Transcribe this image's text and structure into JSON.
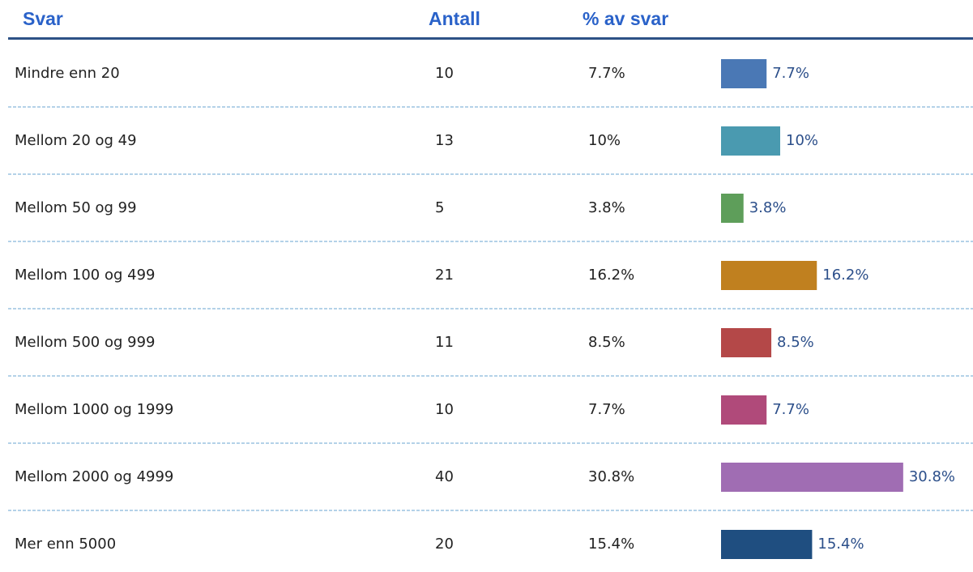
{
  "table": {
    "headers": [
      "Svar",
      "Antall",
      "% av svar"
    ],
    "rows": [
      {
        "svar": "Mindre enn 20",
        "antall": 10,
        "percent": 7.7,
        "percent_label": "7.7%",
        "color": "#4a78b5"
      },
      {
        "svar": "Mellom 20 og 49",
        "antall": 13,
        "percent": 10,
        "percent_label": "10%",
        "color": "#4a9ab0"
      },
      {
        "svar": "Mellom 50 og 99",
        "antall": 5,
        "percent": 3.8,
        "percent_label": "3.8%",
        "color": "#5e9e5a"
      },
      {
        "svar": "Mellom 100 og 499",
        "antall": 21,
        "percent": 16.2,
        "percent_label": "16.2%",
        "color": "#c0801f"
      },
      {
        "svar": "Mellom 500 og 999",
        "antall": 11,
        "percent": 8.5,
        "percent_label": "8.5%",
        "color": "#b44848"
      },
      {
        "svar": "Mellom 1000 og 1999",
        "antall": 10,
        "percent": 7.7,
        "percent_label": "7.7%",
        "color": "#b04a7a"
      },
      {
        "svar": "Mellom 2000 og 4999",
        "antall": 40,
        "percent": 30.8,
        "percent_label": "30.8%",
        "color": "#a06db3"
      },
      {
        "svar": "Mer enn 5000",
        "antall": 20,
        "percent": 15.4,
        "percent_label": "15.4%",
        "color": "#1f4e80"
      }
    ]
  }
}
